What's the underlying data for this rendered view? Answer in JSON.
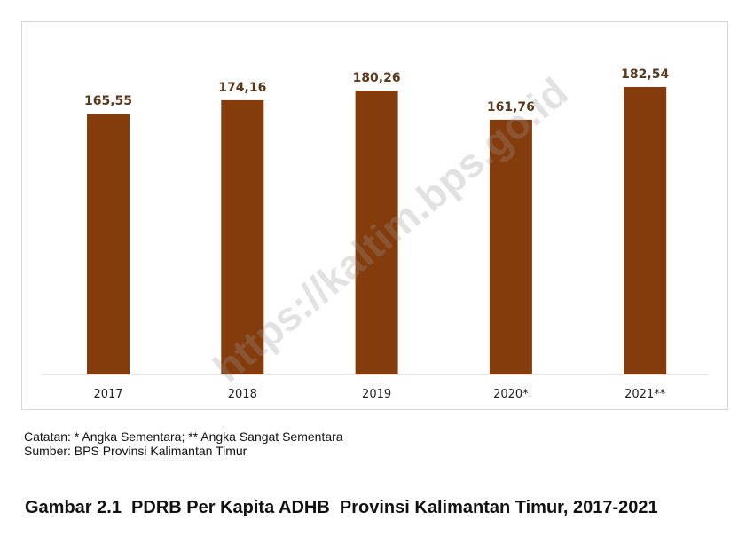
{
  "chart_data": {
    "type": "bar",
    "categories": [
      "2017",
      "2018",
      "2019",
      "2020*",
      "2021**"
    ],
    "values": [
      165.55,
      174.16,
      180.26,
      161.76,
      182.54
    ],
    "value_labels": [
      "165,55",
      "174,16",
      "180,26",
      "161,76",
      "182,54"
    ],
    "title": "",
    "xlabel": "",
    "ylabel": "",
    "ylim": [
      0,
      182.54
    ],
    "grid": false,
    "bar_color": "#843c0c"
  },
  "notes": {
    "catatan": "Catatan: * Angka Sementara; ** Angka Sangat Sementara",
    "sumber": "Sumber: BPS Provinsi Kalimantan Timur"
  },
  "caption": "Gambar 2.1  PDRB Per Kapita ADHB  Provinsi Kalimantan Timur, 2017-2021",
  "watermark": "https://kaltim.bps.go.id"
}
